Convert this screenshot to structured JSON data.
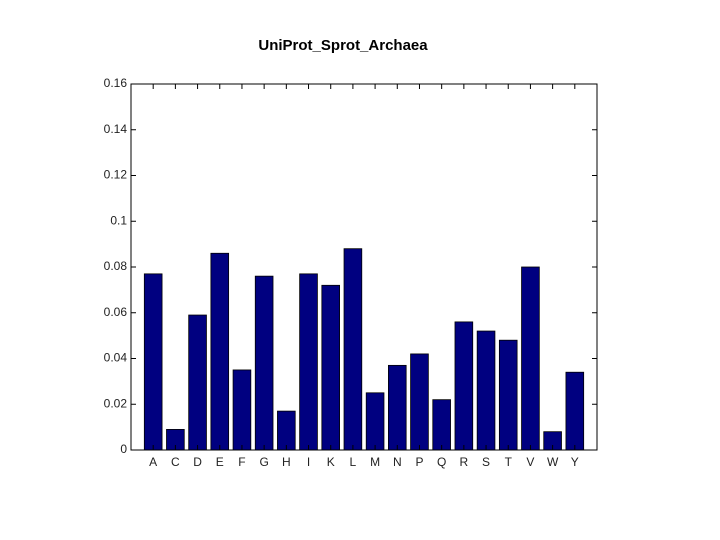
{
  "chart_data": {
    "type": "bar",
    "title": "UniProt_Sprot_Archaea",
    "categories": [
      "A",
      "C",
      "D",
      "E",
      "F",
      "G",
      "H",
      "I",
      "K",
      "L",
      "M",
      "N",
      "P",
      "Q",
      "R",
      "S",
      "T",
      "V",
      "W",
      "Y"
    ],
    "values": [
      0.077,
      0.009,
      0.059,
      0.086,
      0.035,
      0.076,
      0.017,
      0.077,
      0.072,
      0.088,
      0.025,
      0.037,
      0.042,
      0.022,
      0.056,
      0.052,
      0.048,
      0.08,
      0.008,
      0.034
    ],
    "color": "#000080",
    "ylim": [
      0,
      0.16
    ],
    "yticks": [
      0,
      0.02,
      0.04,
      0.06,
      0.08,
      0.1,
      0.12,
      0.14,
      0.16
    ],
    "grid": false
  }
}
